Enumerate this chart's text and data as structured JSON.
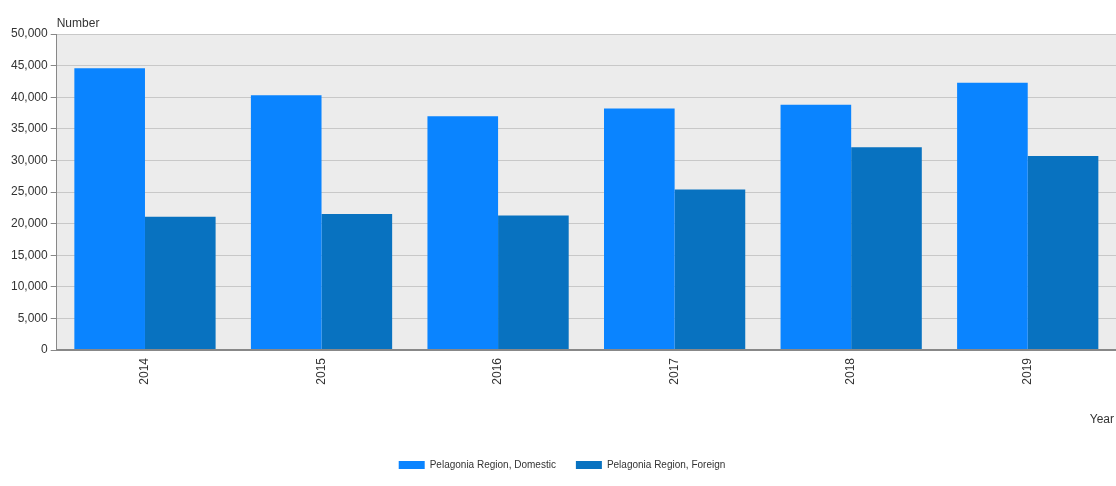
{
  "chart_data": {
    "type": "bar",
    "xlabel": "Year",
    "ylabel": "Number",
    "categories": [
      "2014",
      "2015",
      "2016",
      "2017",
      "2018",
      "2019"
    ],
    "series": [
      {
        "name": "Pelagonia Region, Domestic",
        "color": "#0a84ff",
        "values": [
          44600,
          40300,
          37000,
          38200,
          38800,
          42300
        ]
      },
      {
        "name": "Pelagonia Region, Foreign",
        "color": "#0872c0",
        "values": [
          21100,
          21500,
          21300,
          25400,
          32100,
          30700
        ]
      }
    ],
    "ylim": [
      0,
      50000
    ],
    "yticks": [
      0,
      {
        "value": 5000,
        "label": "5,000"
      },
      {
        "value": 10000,
        "label": "10,000"
      },
      {
        "value": 15000,
        "label": "15,000"
      },
      {
        "value": 20000,
        "label": "20,000"
      },
      {
        "value": 25000,
        "label": "25,000"
      },
      {
        "value": 30000,
        "label": "30,000"
      },
      {
        "value": 35000,
        "label": "35,000"
      },
      {
        "value": 40000,
        "label": "40,000"
      },
      {
        "value": 45000,
        "label": "45,000"
      },
      {
        "value": 50000,
        "label": "50,000"
      }
    ],
    "grid": "y",
    "legend": "bottom"
  }
}
